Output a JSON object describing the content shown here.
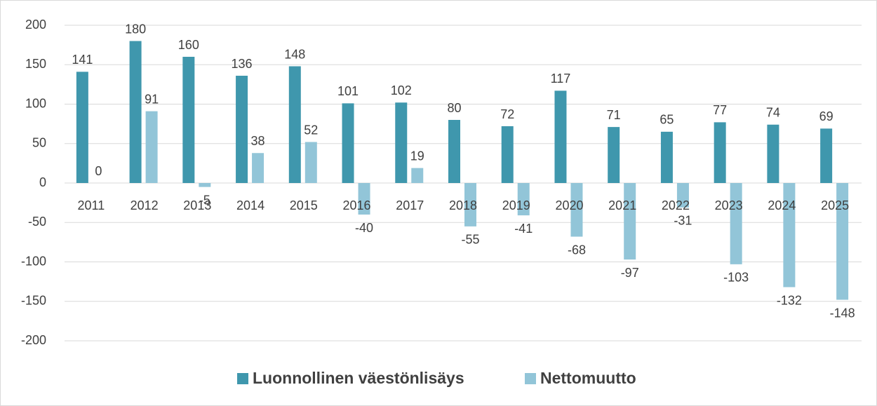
{
  "chart_data": {
    "type": "bar",
    "categories": [
      "2011",
      "2012",
      "2013",
      "2014",
      "2015",
      "2016",
      "2017",
      "2018",
      "2019",
      "2020",
      "2021",
      "2022",
      "2023",
      "2024",
      "2025"
    ],
    "series": [
      {
        "name": "Luonnollinen väestönlisäys",
        "color": "#3f97ad",
        "values": [
          141,
          180,
          160,
          136,
          148,
          101,
          102,
          80,
          72,
          117,
          71,
          65,
          77,
          74,
          69
        ]
      },
      {
        "name": "Nettomuutto",
        "color": "#92c5d8",
        "values": [
          0,
          91,
          -5,
          38,
          52,
          -40,
          19,
          -55,
          -41,
          -68,
          -97,
          -31,
          -103,
          -132,
          -148
        ]
      }
    ],
    "ylim": [
      -200,
      200
    ],
    "yticks": [
      -200,
      -150,
      -100,
      -50,
      0,
      50,
      100,
      150,
      200
    ],
    "grid": true,
    "legend": "bottom"
  }
}
